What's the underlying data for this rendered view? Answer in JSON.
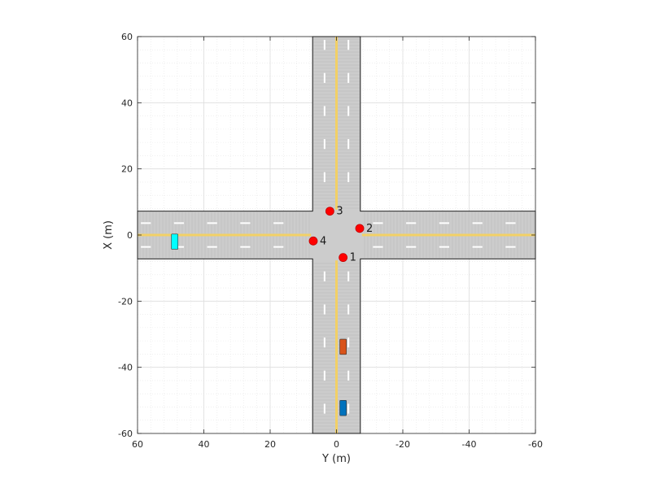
{
  "chart_data": {
    "type": "scatter",
    "title": "",
    "xlabel": "Y (m)",
    "ylabel": "X (m)",
    "xlim": [
      60,
      -60
    ],
    "ylim": [
      -60,
      60
    ],
    "x_reversed": true,
    "grid": true,
    "minor_grid": true,
    "x_ticks": [
      60,
      40,
      20,
      0,
      -20,
      -40,
      -60
    ],
    "x_tick_labels": [
      "60",
      "40",
      "20",
      "0",
      "-20",
      "-40",
      "-60"
    ],
    "y_ticks": [
      60,
      40,
      20,
      0,
      -20,
      -40,
      -60
    ],
    "y_tick_labels": [
      "60",
      "40",
      "20",
      "0",
      "-20",
      "-40",
      "-60"
    ],
    "roads": [
      {
        "name": "north-south",
        "direction": "vertical",
        "center": 0,
        "half_width": 7.2,
        "from": -60,
        "to": 60
      },
      {
        "name": "east-west",
        "direction": "horizontal",
        "center": 0,
        "half_width": 7.2,
        "from": -60,
        "to": 60
      }
    ],
    "waypoints": [
      {
        "label": "1",
        "y": -2,
        "x": -6.8
      },
      {
        "label": "2",
        "y": -7,
        "x": 2
      },
      {
        "label": "3",
        "y": 2,
        "x": 7.2
      },
      {
        "label": "4",
        "y": 7,
        "x": -1.8
      }
    ],
    "vehicles": [
      {
        "name": "orange-car",
        "y_center": -2,
        "x_center": -33.8,
        "width": 2,
        "length": 4.6,
        "color": "#d95319"
      },
      {
        "name": "blue-car",
        "y_center": -2,
        "x_center": -52.3,
        "width": 2,
        "length": 4.6,
        "color": "#0072bd"
      },
      {
        "name": "cyan-car",
        "y_center": 48.8,
        "x_center": -2,
        "width": 4.6,
        "length": 2,
        "color": "#00ffff"
      }
    ],
    "colors": {
      "road": "#cccccc",
      "road_edge": "#000000",
      "center_line": "#f2d066",
      "lane_marking": "#ffffff",
      "waypoint": "#ff0000",
      "waypoint_edge": "#c00000"
    }
  }
}
